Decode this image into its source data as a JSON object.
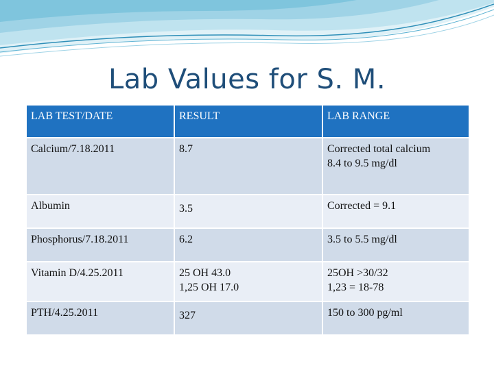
{
  "slide": {
    "title": "Lab Values for S. M."
  },
  "colors": {
    "title": "#1f4e79",
    "header_bg": "#1f72c1",
    "row_bg": "#d0dbe9",
    "row_alt_bg": "#e9eef6",
    "wave_light": "#bfe3ef",
    "wave_mid": "#7fc5dd",
    "wave_dark": "#2f8fb8"
  },
  "table": {
    "headers": [
      "LAB TEST/DATE",
      "RESULT",
      "LAB RANGE"
    ],
    "rows": [
      [
        "Calcium/7.18.2011",
        "8.7",
        "Corrected total calcium\n8.4 to 9.5 mg/dl"
      ],
      [
        "Albumin",
        "3.5",
        "Corrected = 9.1"
      ],
      [
        "Phosphorus/7.18.2011",
        "6.2",
        "3.5 to 5.5 mg/dl"
      ],
      [
        "Vitamin D/4.25.2011",
        "25 OH 43.0\n1,25 OH 17.0",
        "25OH >30/32\n1,23 = 18-78"
      ],
      [
        "PTH/4.25.2011",
        "327",
        "150 to 300 pg/ml"
      ]
    ]
  }
}
